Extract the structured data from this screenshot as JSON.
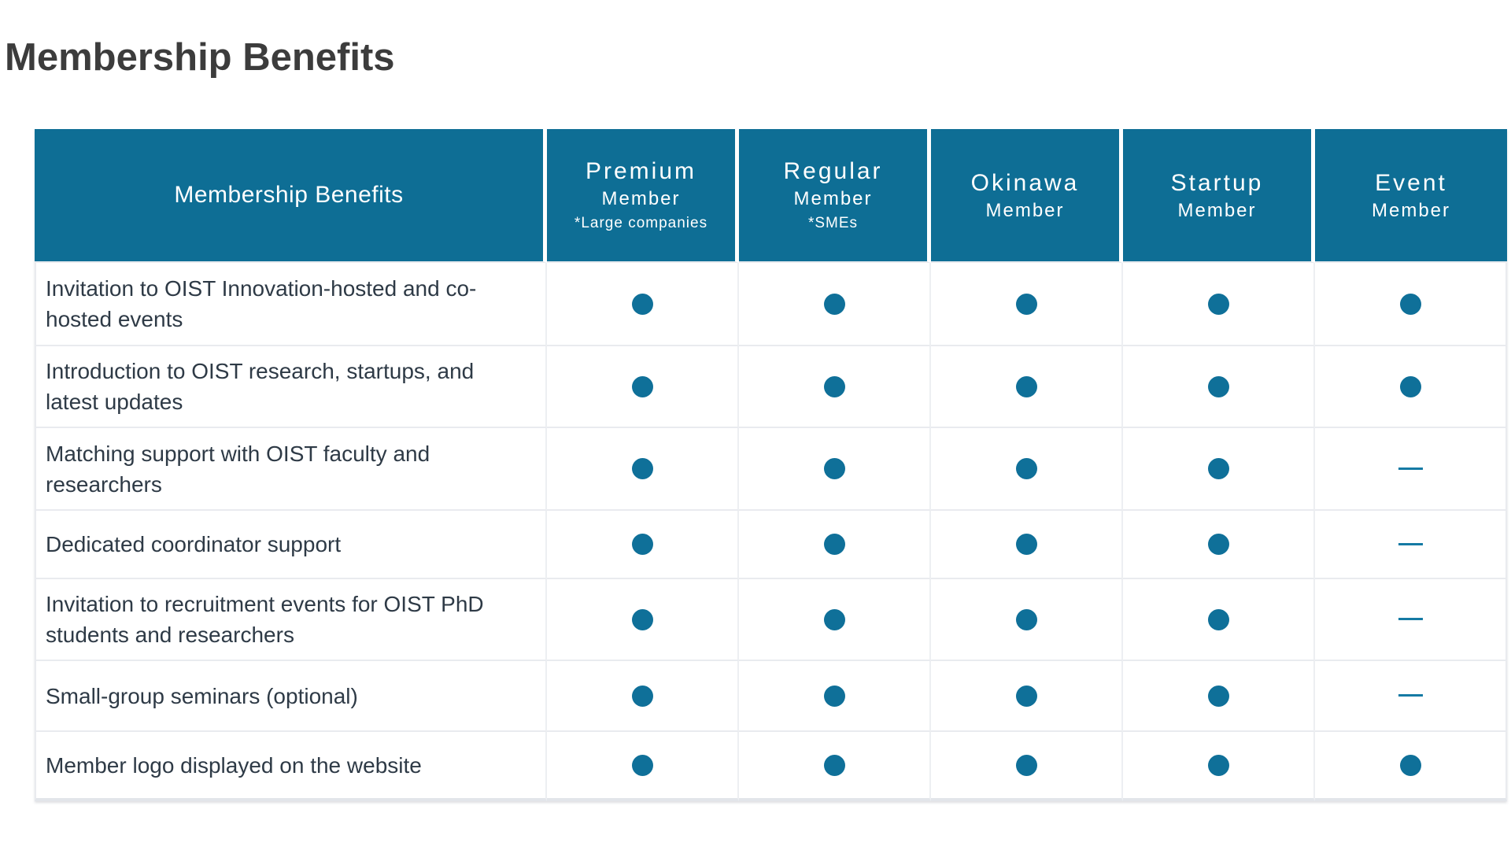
{
  "page": {
    "title": "Membership Benefits"
  },
  "colors": {
    "header_teal": "#0e6e95",
    "dot_teal": "#0f7099",
    "dash_teal": "#157aa4",
    "title_text": "#3c3c3c",
    "benefit_text": "#2e3a46",
    "row_border": "#e9ebef"
  },
  "table": {
    "header_label": "Membership Benefits",
    "columns": [
      {
        "label": "Premium",
        "sub": "Member",
        "note": "*Large companies"
      },
      {
        "label": "Regular",
        "sub": "Member",
        "note": "*SMEs"
      },
      {
        "label": "Okinawa",
        "sub": "Member",
        "note": ""
      },
      {
        "label": "Startup",
        "sub": "Member",
        "note": ""
      },
      {
        "label": "Event",
        "sub": "Member",
        "note": ""
      }
    ],
    "rows": [
      {
        "benefit": "Invitation to OIST Innovation-hosted and co-hosted events",
        "availability": [
          "dot",
          "dot",
          "dot",
          "dot",
          "dot"
        ]
      },
      {
        "benefit": "Introduction to OIST research, startups, and latest updates",
        "availability": [
          "dot",
          "dot",
          "dot",
          "dot",
          "dot"
        ]
      },
      {
        "benefit": "Matching support with OIST faculty and researchers",
        "availability": [
          "dot",
          "dot",
          "dot",
          "dot",
          "dash"
        ]
      },
      {
        "benefit": "Dedicated coordinator support",
        "availability": [
          "dot",
          "dot",
          "dot",
          "dot",
          "dash"
        ]
      },
      {
        "benefit": "Invitation to recruitment events for OIST PhD students and researchers",
        "availability": [
          "dot",
          "dot",
          "dot",
          "dot",
          "dash"
        ]
      },
      {
        "benefit": "Small-group seminars (optional)",
        "availability": [
          "dot",
          "dot",
          "dot",
          "dot",
          "dash"
        ]
      },
      {
        "benefit": "Member logo displayed on the website",
        "availability": [
          "dot",
          "dot",
          "dot",
          "dot",
          "dot"
        ]
      }
    ]
  }
}
